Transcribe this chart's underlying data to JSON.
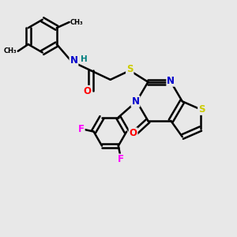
{
  "background_color": "#e8e8e8",
  "atom_colors": {
    "C": "#000000",
    "N": "#0000cc",
    "O": "#ff0000",
    "S": "#cccc00",
    "F": "#ff00ff",
    "H": "#008080",
    "NH": "#0000cc"
  },
  "bond_color": "#000000",
  "bond_width": 1.8,
  "figsize": [
    3.0,
    3.0
  ],
  "dpi": 100
}
